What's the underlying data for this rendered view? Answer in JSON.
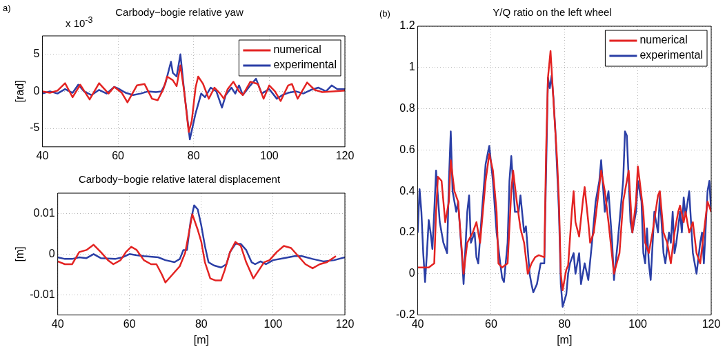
{
  "chart_data": [
    {
      "type": "line",
      "title": "Carbody−bogie relative yaw",
      "ylabel": "[rad]",
      "annotations": [
        "a)",
        "x 10$^{-3}$"
      ],
      "legend": "top right",
      "grid": true,
      "xlim": [
        40,
        120
      ],
      "xticks": [
        40,
        60,
        80,
        100,
        120
      ],
      "ylim": [
        -7.5,
        7.5
      ],
      "yticks": [
        -5,
        0,
        5
      ],
      "series": [
        {
          "name": "numerical",
          "color": "#e32322",
          "x": [
            40,
            42,
            44,
            46,
            48,
            50,
            52.5,
            55,
            57.5,
            59,
            61,
            62.5,
            65,
            67,
            69,
            70.5,
            72,
            73,
            74.5,
            75.5,
            76.5,
            77.5,
            78.7,
            79.5,
            80.5,
            81.2,
            82.5,
            84,
            85.5,
            87,
            88,
            89,
            90.5,
            92,
            93,
            95,
            97,
            98.5,
            100,
            101.5,
            103,
            105,
            106,
            107.5,
            110,
            112,
            114,
            117,
            120
          ],
          "values": [
            0,
            -0.2,
            0.1,
            1.1,
            -0.8,
            0.9,
            -1.1,
            1.1,
            -0.3,
            0.6,
            -0.2,
            -1.5,
            0.8,
            1,
            -1,
            -1.2,
            0.3,
            2,
            1.5,
            0.7,
            3.5,
            0,
            -5.5,
            -4,
            0.5,
            2,
            1,
            -1,
            0.5,
            -0.3,
            -1,
            0.3,
            1.3,
            0,
            -0.5,
            1.3,
            1,
            -1,
            0.8,
            0,
            -1.3,
            0.8,
            1,
            -1,
            1.2,
            0.2,
            -0.1,
            0,
            0.1
          ]
        },
        {
          "name": "experimental",
          "color": "#2b3fa6",
          "x": [
            40,
            42,
            44,
            46,
            48,
            49.5,
            51,
            53,
            55,
            57,
            59,
            60,
            62,
            64,
            66,
            68,
            70,
            71.5,
            72.5,
            74,
            74.5,
            75.5,
            76.5,
            77.5,
            79,
            80.5,
            82,
            83,
            84.5,
            86,
            87.5,
            88.5,
            90,
            91,
            92,
            93,
            95,
            96.5,
            98,
            100,
            102,
            103.5,
            105,
            107,
            109,
            111,
            113,
            115,
            116.5,
            118,
            120
          ],
          "values": [
            -0.3,
            0,
            -0.3,
            0.3,
            -0.2,
            0.9,
            0,
            -0.5,
            0.2,
            -0.3,
            0.6,
            0.4,
            -0.2,
            -0.5,
            -0.3,
            0,
            -0.1,
            0,
            1,
            4,
            2.5,
            2,
            5,
            0,
            -6.5,
            -3,
            -0.3,
            -0.8,
            0.5,
            0,
            -2.2,
            -0.5,
            0.5,
            -0.3,
            0.8,
            -0.5,
            0.8,
            1.7,
            -0.3,
            0.3,
            -1,
            -0.5,
            -0.2,
            0,
            -0.3,
            0.2,
            0.5,
            0,
            0.8,
            0.3,
            0.3
          ]
        }
      ]
    },
    {
      "type": "line",
      "title": "Carbody−bogie relative lateral displacement",
      "xlabel": "[m]",
      "ylabel": "[m]",
      "grid": true,
      "xlim": [
        40,
        120
      ],
      "xticks": [
        40,
        60,
        80,
        100,
        120
      ],
      "ylim": [
        -0.015,
        0.015
      ],
      "yticks": [
        -0.01,
        0,
        0.01
      ],
      "series": [
        {
          "color": "#e32322",
          "x": [
            40,
            42,
            44,
            46,
            48,
            50,
            52,
            54,
            55.5,
            57.5,
            59,
            60.5,
            62,
            64,
            66,
            67.5,
            69,
            70,
            72,
            74,
            75.5,
            76.5,
            77.5,
            79,
            80,
            81,
            82.5,
            84,
            85.5,
            86.5,
            88,
            89.5,
            91,
            92.5,
            94.5,
            96,
            97.5,
            99,
            101,
            103,
            105,
            107,
            109,
            111,
            113,
            115,
            117.5
          ],
          "values": [
            -0.0018,
            -0.0025,
            -0.0025,
            0.0005,
            0.001,
            0.0023,
            0.0005,
            -0.0015,
            -0.0025,
            -0.0015,
            0.0005,
            0.0018,
            0.001,
            -0.0015,
            -0.0025,
            -0.0025,
            -0.005,
            -0.007,
            -0.005,
            -0.003,
            0.0003,
            0.005,
            0.0098,
            0.006,
            0.003,
            -0.002,
            -0.006,
            -0.0065,
            -0.0065,
            -0.004,
            0.0005,
            0.003,
            0.002,
            -0.002,
            -0.006,
            -0.004,
            -0.002,
            -0.0015,
            0.0005,
            0.002,
            0.0015,
            -0.0005,
            -0.0025,
            -0.0035,
            -0.0025,
            -0.002,
            -0.0005
          ]
        },
        {
          "color": "#2b3fa6",
          "x": [
            40,
            42,
            44,
            46,
            48,
            50,
            52,
            56,
            58,
            60,
            62,
            64,
            68,
            70,
            72.5,
            74,
            75,
            76,
            77,
            78,
            79,
            80,
            81,
            82,
            83.5,
            85.5,
            87,
            88,
            89.5,
            91,
            92.5,
            94,
            95,
            96.5,
            98,
            100,
            103,
            106,
            108,
            111,
            114,
            117,
            120
          ],
          "values": [
            -0.0008,
            -0.0012,
            -0.0012,
            -0.0008,
            -0.001,
            0,
            -0.001,
            -0.0012,
            -0.0008,
            0,
            -0.0003,
            -0.0005,
            -0.0008,
            -0.0015,
            -0.002,
            -0.0012,
            0.001,
            0.001,
            0.008,
            0.012,
            0.011,
            0.007,
            0.002,
            -0.002,
            -0.0028,
            -0.0033,
            -0.0025,
            0.0005,
            0.0025,
            0.0025,
            0.001,
            -0.002,
            -0.0025,
            -0.0018,
            -0.0025,
            -0.0015,
            -0.001,
            -0.0005,
            -0.0005,
            -0.0012,
            -0.0018,
            -0.0015,
            -0.0008
          ]
        }
      ]
    },
    {
      "type": "line",
      "title": "Y/Q ratio on the left wheel",
      "xlabel": "[m]",
      "annotations": [
        "(b)"
      ],
      "legend": "top right",
      "grid": true,
      "xlim": [
        40,
        120
      ],
      "xticks": [
        40,
        60,
        80,
        100,
        120
      ],
      "ylim": [
        -0.2,
        1.2
      ],
      "yticks": [
        -0.2,
        0,
        0.2,
        0.4,
        0.6,
        0.8,
        1,
        1.2
      ],
      "series": [
        {
          "name": "numerical",
          "color": "#e32322",
          "x": [
            40,
            43,
            44.5,
            45,
            45.5,
            46.5,
            47.5,
            48.5,
            49,
            50,
            51,
            52.5,
            53.5,
            55,
            56,
            57,
            58.5,
            59.5,
            60.5,
            61.5,
            62,
            63,
            64.5,
            65.5,
            66,
            67,
            68,
            69,
            70,
            71,
            72,
            73,
            74.5,
            75,
            75.5,
            76.2,
            76.8,
            77.3,
            78,
            78.5,
            79,
            79.5,
            80.5,
            81,
            82,
            82.5,
            83,
            84,
            85,
            85.5,
            86.5,
            87,
            88,
            89,
            90,
            91,
            92,
            93.5,
            95,
            96,
            97.5,
            98.5,
            99.5,
            100,
            100.5,
            101.5,
            102,
            103,
            104,
            105.5,
            106,
            107,
            108,
            109,
            110,
            111,
            111.5,
            112.5,
            113,
            114,
            115,
            116,
            117,
            118,
            119,
            120
          ],
          "values": [
            0.03,
            0.03,
            0.05,
            0.3,
            0.47,
            0.45,
            0.25,
            0.35,
            0.55,
            0.4,
            0.35,
            0,
            0.15,
            0.2,
            0.25,
            0.15,
            0.45,
            0.58,
            0.5,
            0.3,
            0.05,
            0.03,
            0.05,
            0.4,
            0.5,
            0.35,
            0.22,
            0.15,
            0,
            0.05,
            0.08,
            0.09,
            0.08,
            0.6,
            0.95,
            1.08,
            0.9,
            0.75,
            0.55,
            0.35,
            0,
            -0.08,
            0.02,
            0.04,
            0.3,
            0.4,
            0.25,
            0.18,
            0.35,
            0.42,
            0.25,
            0.15,
            0.2,
            0.35,
            0.5,
            0.4,
            0.25,
            0,
            0.1,
            0.35,
            0.5,
            0.2,
            0.35,
            0.52,
            0.45,
            0.3,
            0.15,
            0.1,
            0.2,
            0.38,
            0.4,
            0.2,
            0.15,
            0.05,
            0.2,
            0.3,
            0.33,
            0.25,
            0.3,
            0.2,
            0.25,
            0.1,
            0.05,
            0.2,
            0.35,
            0.3
          ]
        },
        {
          "name": "experimental",
          "color": "#2b3fa6",
          "x": [
            40,
            40.5,
            41,
            41.5,
            42,
            42.5,
            43,
            43.5,
            44,
            44.5,
            45,
            46,
            47,
            48,
            48.5,
            49,
            49.5,
            50.5,
            51,
            52,
            52.5,
            53.5,
            54,
            54.5,
            55.5,
            56,
            56.5,
            57.5,
            58.5,
            59.5,
            60.5,
            61.5,
            62.5,
            63,
            63.5,
            64.5,
            65,
            65.5,
            66.5,
            67.5,
            68,
            69,
            69.5,
            70.5,
            71,
            71.5,
            72.5,
            73.5,
            74.5,
            75,
            75.5,
            76,
            76.5,
            77,
            77.5,
            78,
            78.5,
            79,
            79.5,
            80.5,
            81,
            81.5,
            82.5,
            83,
            84,
            84.5,
            85.5,
            86.5,
            87.5,
            88.5,
            89.5,
            90,
            91,
            92,
            93,
            93.5,
            94.5,
            95.5,
            96,
            96.5,
            97,
            98,
            98.5,
            99.5,
            100,
            101,
            101.5,
            102,
            102.5,
            103,
            103.5,
            104.5,
            105.5,
            106,
            107,
            107.5,
            108.5,
            109,
            109.5,
            110,
            110.5,
            111.5,
            112,
            112.5,
            113,
            114,
            114.5,
            115,
            116,
            117,
            117.5,
            118,
            119,
            119.5,
            120
          ],
          "values": [
            0.2,
            0.41,
            0.3,
            0.1,
            -0.04,
            0.1,
            0.26,
            0.2,
            0.12,
            0.3,
            0.5,
            0.25,
            0.15,
            0.1,
            0.45,
            0.69,
            0.4,
            0.3,
            0.35,
            0.1,
            -0.05,
            0.3,
            0.38,
            0.15,
            0.2,
            0.08,
            0.05,
            0.3,
            0.53,
            0.62,
            0.45,
            0.2,
            0.05,
            -0.02,
            -0.04,
            0.15,
            0.45,
            0.57,
            0.3,
            0.3,
            0.38,
            0.2,
            0.23,
            0,
            -0.05,
            -0.09,
            -0.05,
            0.05,
            0.05,
            0.5,
            0.95,
            0.9,
            0.96,
            0.85,
            0.7,
            0.5,
            0.3,
            -0.05,
            -0.16,
            -0.1,
            0,
            0.05,
            0.1,
            0,
            0.1,
            -0.05,
            0.05,
            -0.03,
            0.15,
            0.35,
            0.45,
            0.55,
            0.3,
            0.4,
            0.15,
            -0.03,
            0.15,
            0.35,
            0.45,
            0.69,
            0.67,
            0.25,
            0.2,
            0.3,
            0.45,
            0.35,
            0.1,
            0.05,
            0.22,
            0.05,
            -0.03,
            0.3,
            0.2,
            0.38,
            0.1,
            0.05,
            0.2,
            0.15,
            0.3,
            0.1,
            0.15,
            0.3,
            0.2,
            0.37,
            0.28,
            0.4,
            0.25,
            0.1,
            0,
            0.15,
            0.2,
            0.05,
            0.4,
            0.45,
            0.3
          ]
        }
      ]
    }
  ]
}
